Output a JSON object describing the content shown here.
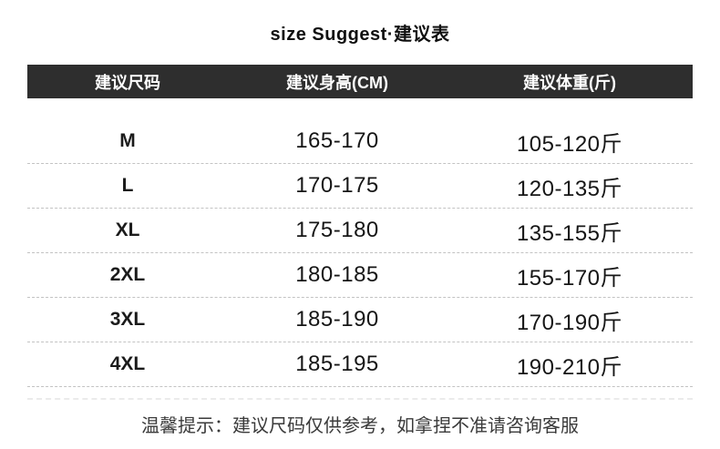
{
  "title": "size Suggest·建议表",
  "table": {
    "headers": [
      "建议尺码",
      "建议身高(CM)",
      "建议体重(斤)"
    ],
    "rows": [
      {
        "size": "M",
        "height": "165-170",
        "weight": "105-120斤"
      },
      {
        "size": "L",
        "height": "170-175",
        "weight": "120-135斤"
      },
      {
        "size": "XL",
        "height": "175-180",
        "weight": "135-155斤"
      },
      {
        "size": "2XL",
        "height": "180-185",
        "weight": "155-170斤"
      },
      {
        "size": "3XL",
        "height": "185-190",
        "weight": "170-190斤"
      },
      {
        "size": "4XL",
        "height": "185-195",
        "weight": "190-210斤"
      }
    ]
  },
  "footer": {
    "note": "温馨提示：建议尺码仅供参考，如拿捏不准请咨询客服"
  },
  "colors": {
    "header_bg": "#2e2e2e",
    "header_text": "#ffffff",
    "body_text": "#161616",
    "divider": "#c3c3c3",
    "note_text": "#3a3a3a",
    "background": "#ffffff"
  },
  "chart_data": {
    "type": "table",
    "title": "size Suggest·建议表",
    "columns": [
      "建议尺码",
      "建议身高(CM)",
      "建议体重(斤)"
    ],
    "rows": [
      [
        "M",
        "165-170",
        "105-120斤"
      ],
      [
        "L",
        "170-175",
        "120-135斤"
      ],
      [
        "XL",
        "175-180",
        "135-155斤"
      ],
      [
        "2XL",
        "180-185",
        "155-170斤"
      ],
      [
        "3XL",
        "185-190",
        "170-190斤"
      ],
      [
        "4XL",
        "185-195",
        "190-210斤"
      ]
    ],
    "note": "温馨提示：建议尺码仅供参考，如拿捏不准请咨询客服"
  }
}
